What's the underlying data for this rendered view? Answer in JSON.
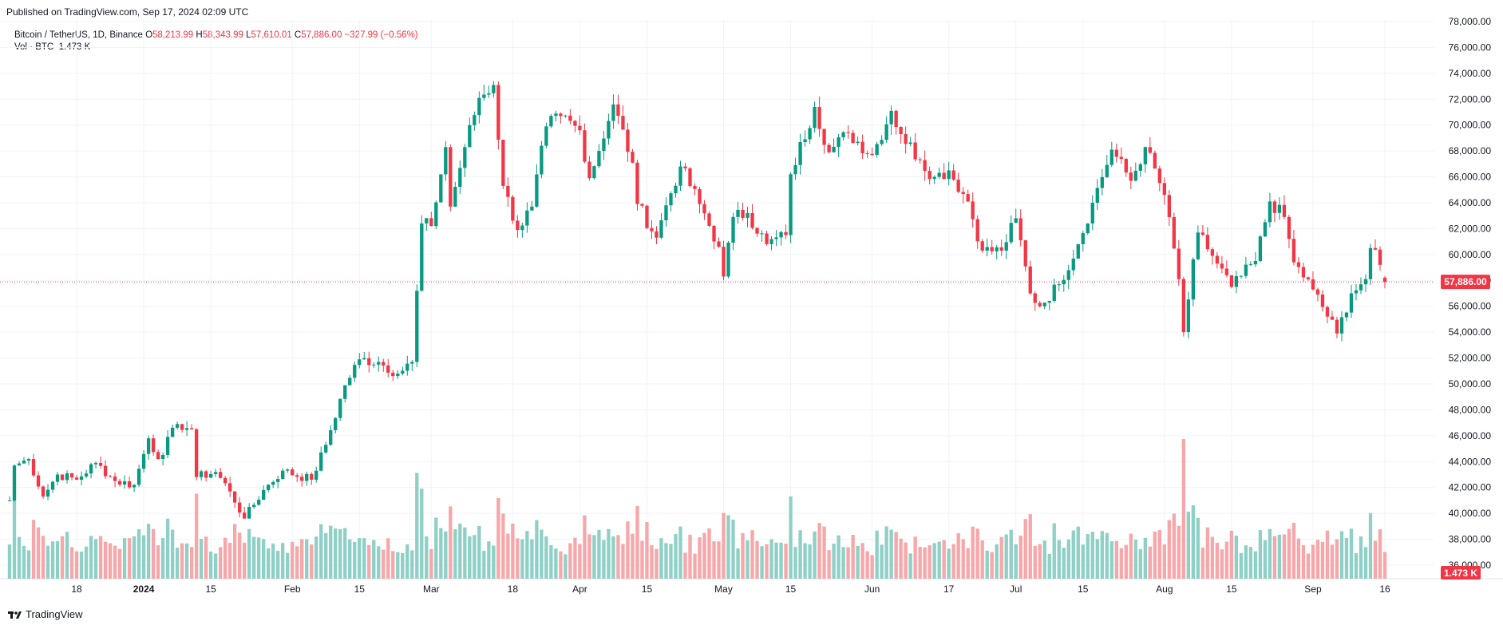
{
  "header": {
    "published": "Published on TradingView.com, Sep 17, 2024 02:09 UTC"
  },
  "legend": {
    "symbol": "Bitcoin / TetherUS, 1D, Binance",
    "o_label": "O",
    "o_value": "58,213.99",
    "h_label": "H",
    "h_value": "58,343.99",
    "l_label": "L",
    "l_value": "57,610.01",
    "c_label": "C",
    "c_value": "57,886.00",
    "change": "−327.99 (−0.56%)",
    "vol_label": "Vol · BTC",
    "vol_value": "1.473 K"
  },
  "footer": {
    "brand": "TradingView"
  },
  "colors": {
    "up": "#089981",
    "down": "#f23645",
    "vol_up": "#8fd0c6",
    "vol_down": "#f7a6a9",
    "grid": "#f0f3fa"
  },
  "chart_data": {
    "type": "candlestick",
    "series_name": "Bitcoin / TetherUS",
    "y_axis": {
      "ticks": [
        "36,000.00",
        "38,000.00",
        "40,000.00",
        "42,000.00",
        "44,000.00",
        "46,000.00",
        "48,000.00",
        "50,000.00",
        "52,000.00",
        "54,000.00",
        "56,000.00",
        "58,000.00",
        "60,000.00",
        "62,000.00",
        "64,000.00",
        "66,000.00",
        "68,000.00",
        "70,000.00",
        "72,000.00",
        "74,000.00",
        "76,000.00",
        "78,000.00"
      ],
      "tick_values": [
        36000,
        38000,
        40000,
        42000,
        44000,
        46000,
        48000,
        50000,
        52000,
        54000,
        56000,
        58000,
        60000,
        62000,
        64000,
        66000,
        68000,
        70000,
        72000,
        74000,
        76000,
        78000
      ],
      "range": [
        35000,
        78000
      ],
      "last_price_label": "57,886.00",
      "last_price": 57886,
      "last_volume_label": "1.473 K"
    },
    "x_axis": {
      "tick_labels": [
        "18",
        "2024",
        "15",
        "Feb",
        "15",
        "Mar",
        "18",
        "Apr",
        "15",
        "May",
        "15",
        "Jun",
        "17",
        "Jul",
        "15",
        "Aug",
        "15",
        "Sep",
        "16"
      ],
      "tick_dates": [
        "2023-12-18",
        "2024-01-01",
        "2024-01-15",
        "2024-02-01",
        "2024-02-15",
        "2024-03-01",
        "2024-03-18",
        "2024-04-01",
        "2024-04-15",
        "2024-05-01",
        "2024-05-15",
        "2024-06-01",
        "2024-06-17",
        "2024-07-01",
        "2024-07-15",
        "2024-08-01",
        "2024-08-15",
        "2024-09-01",
        "2024-09-16"
      ]
    },
    "anchors": [
      [
        "2023-12-04",
        41000,
        "2023-12-04"
      ],
      [
        "2023-12-05",
        43700
      ],
      [
        "2023-12-08",
        44200
      ],
      [
        "2023-12-11",
        41300
      ],
      [
        "2023-12-14",
        43000
      ],
      [
        "2023-12-18",
        42600
      ],
      [
        "2023-12-22",
        43900
      ],
      [
        "2023-12-26",
        42500
      ],
      [
        "2023-12-30",
        42200
      ],
      [
        "2024-01-02",
        45800
      ],
      [
        "2024-01-04",
        44200
      ],
      [
        "2024-01-08",
        46900
      ],
      [
        "2024-01-11",
        46500
      ],
      [
        "2024-01-12",
        42800
      ],
      [
        "2024-01-16",
        43200
      ],
      [
        "2024-01-19",
        41700
      ],
      [
        "2024-01-22",
        39600
      ],
      [
        "2024-01-26",
        41800
      ],
      [
        "2024-01-30",
        43300
      ],
      [
        "2024-02-05",
        42600
      ],
      [
        "2024-02-08",
        45300
      ],
      [
        "2024-02-12",
        49900
      ],
      [
        "2024-02-15",
        51900
      ],
      [
        "2024-02-19",
        51700
      ],
      [
        "2024-02-23",
        50800
      ],
      [
        "2024-02-26",
        51700
      ],
      [
        "2024-02-28",
        62400
      ],
      [
        "2024-03-01",
        62200
      ],
      [
        "2024-03-04",
        68300
      ],
      [
        "2024-03-05",
        63700
      ],
      [
        "2024-03-08",
        68300
      ],
      [
        "2024-03-11",
        72100
      ],
      [
        "2024-03-14",
        73100
      ],
      [
        "2024-03-16",
        65300
      ],
      [
        "2024-03-19",
        61900
      ],
      [
        "2024-03-22",
        63700
      ],
      [
        "2024-03-25",
        69900
      ],
      [
        "2024-03-28",
        70700
      ],
      [
        "2024-04-01",
        69600
      ],
      [
        "2024-04-03",
        65900
      ],
      [
        "2024-04-08",
        71600
      ],
      [
        "2024-04-12",
        67100
      ],
      [
        "2024-04-13",
        63900
      ],
      [
        "2024-04-17",
        61300
      ],
      [
        "2024-04-19",
        63800
      ],
      [
        "2024-04-22",
        66800
      ],
      [
        "2024-04-26",
        63900
      ],
      [
        "2024-04-30",
        60600
      ],
      [
        "2024-05-01",
        58300
      ],
      [
        "2024-05-03",
        62900
      ],
      [
        "2024-05-06",
        63200
      ],
      [
        "2024-05-10",
        60800
      ],
      [
        "2024-05-14",
        61500
      ],
      [
        "2024-05-15",
        66200
      ],
      [
        "2024-05-20",
        71400
      ],
      [
        "2024-05-23",
        67900
      ],
      [
        "2024-05-27",
        69400
      ],
      [
        "2024-06-01",
        67700
      ],
      [
        "2024-06-05",
        71100
      ],
      [
        "2024-06-07",
        69300
      ],
      [
        "2024-06-11",
        67300
      ],
      [
        "2024-06-14",
        66000
      ],
      [
        "2024-06-17",
        66500
      ],
      [
        "2024-06-21",
        64100
      ],
      [
        "2024-06-24",
        60300
      ],
      [
        "2024-06-28",
        60300
      ],
      [
        "2024-07-01",
        62800
      ],
      [
        "2024-07-04",
        57000
      ],
      [
        "2024-07-06",
        56000
      ],
      [
        "2024-07-10",
        57700
      ],
      [
        "2024-07-14",
        60800
      ],
      [
        "2024-07-17",
        64000
      ],
      [
        "2024-07-21",
        68100
      ],
      [
        "2024-07-25",
        65700
      ],
      [
        "2024-07-28",
        68300
      ],
      [
        "2024-08-01",
        64600
      ],
      [
        "2024-08-04",
        58100
      ],
      [
        "2024-08-05",
        54000
      ],
      [
        "2024-08-08",
        61700
      ],
      [
        "2024-08-12",
        59300
      ],
      [
        "2024-08-15",
        57500
      ],
      [
        "2024-08-20",
        59500
      ],
      [
        "2024-08-23",
        64100
      ],
      [
        "2024-08-26",
        62900
      ],
      [
        "2024-08-28",
        59400
      ],
      [
        "2024-09-01",
        57300
      ],
      [
        "2024-09-06",
        53900
      ],
      [
        "2024-09-09",
        57000
      ],
      [
        "2024-09-12",
        58100
      ],
      [
        "2024-09-13",
        60500
      ],
      [
        "2024-09-15",
        59200
      ],
      [
        "2024-09-16",
        57886
      ]
    ],
    "volume_note": "daily volume bars in lower pane, peak spike on 2024-08-05"
  }
}
